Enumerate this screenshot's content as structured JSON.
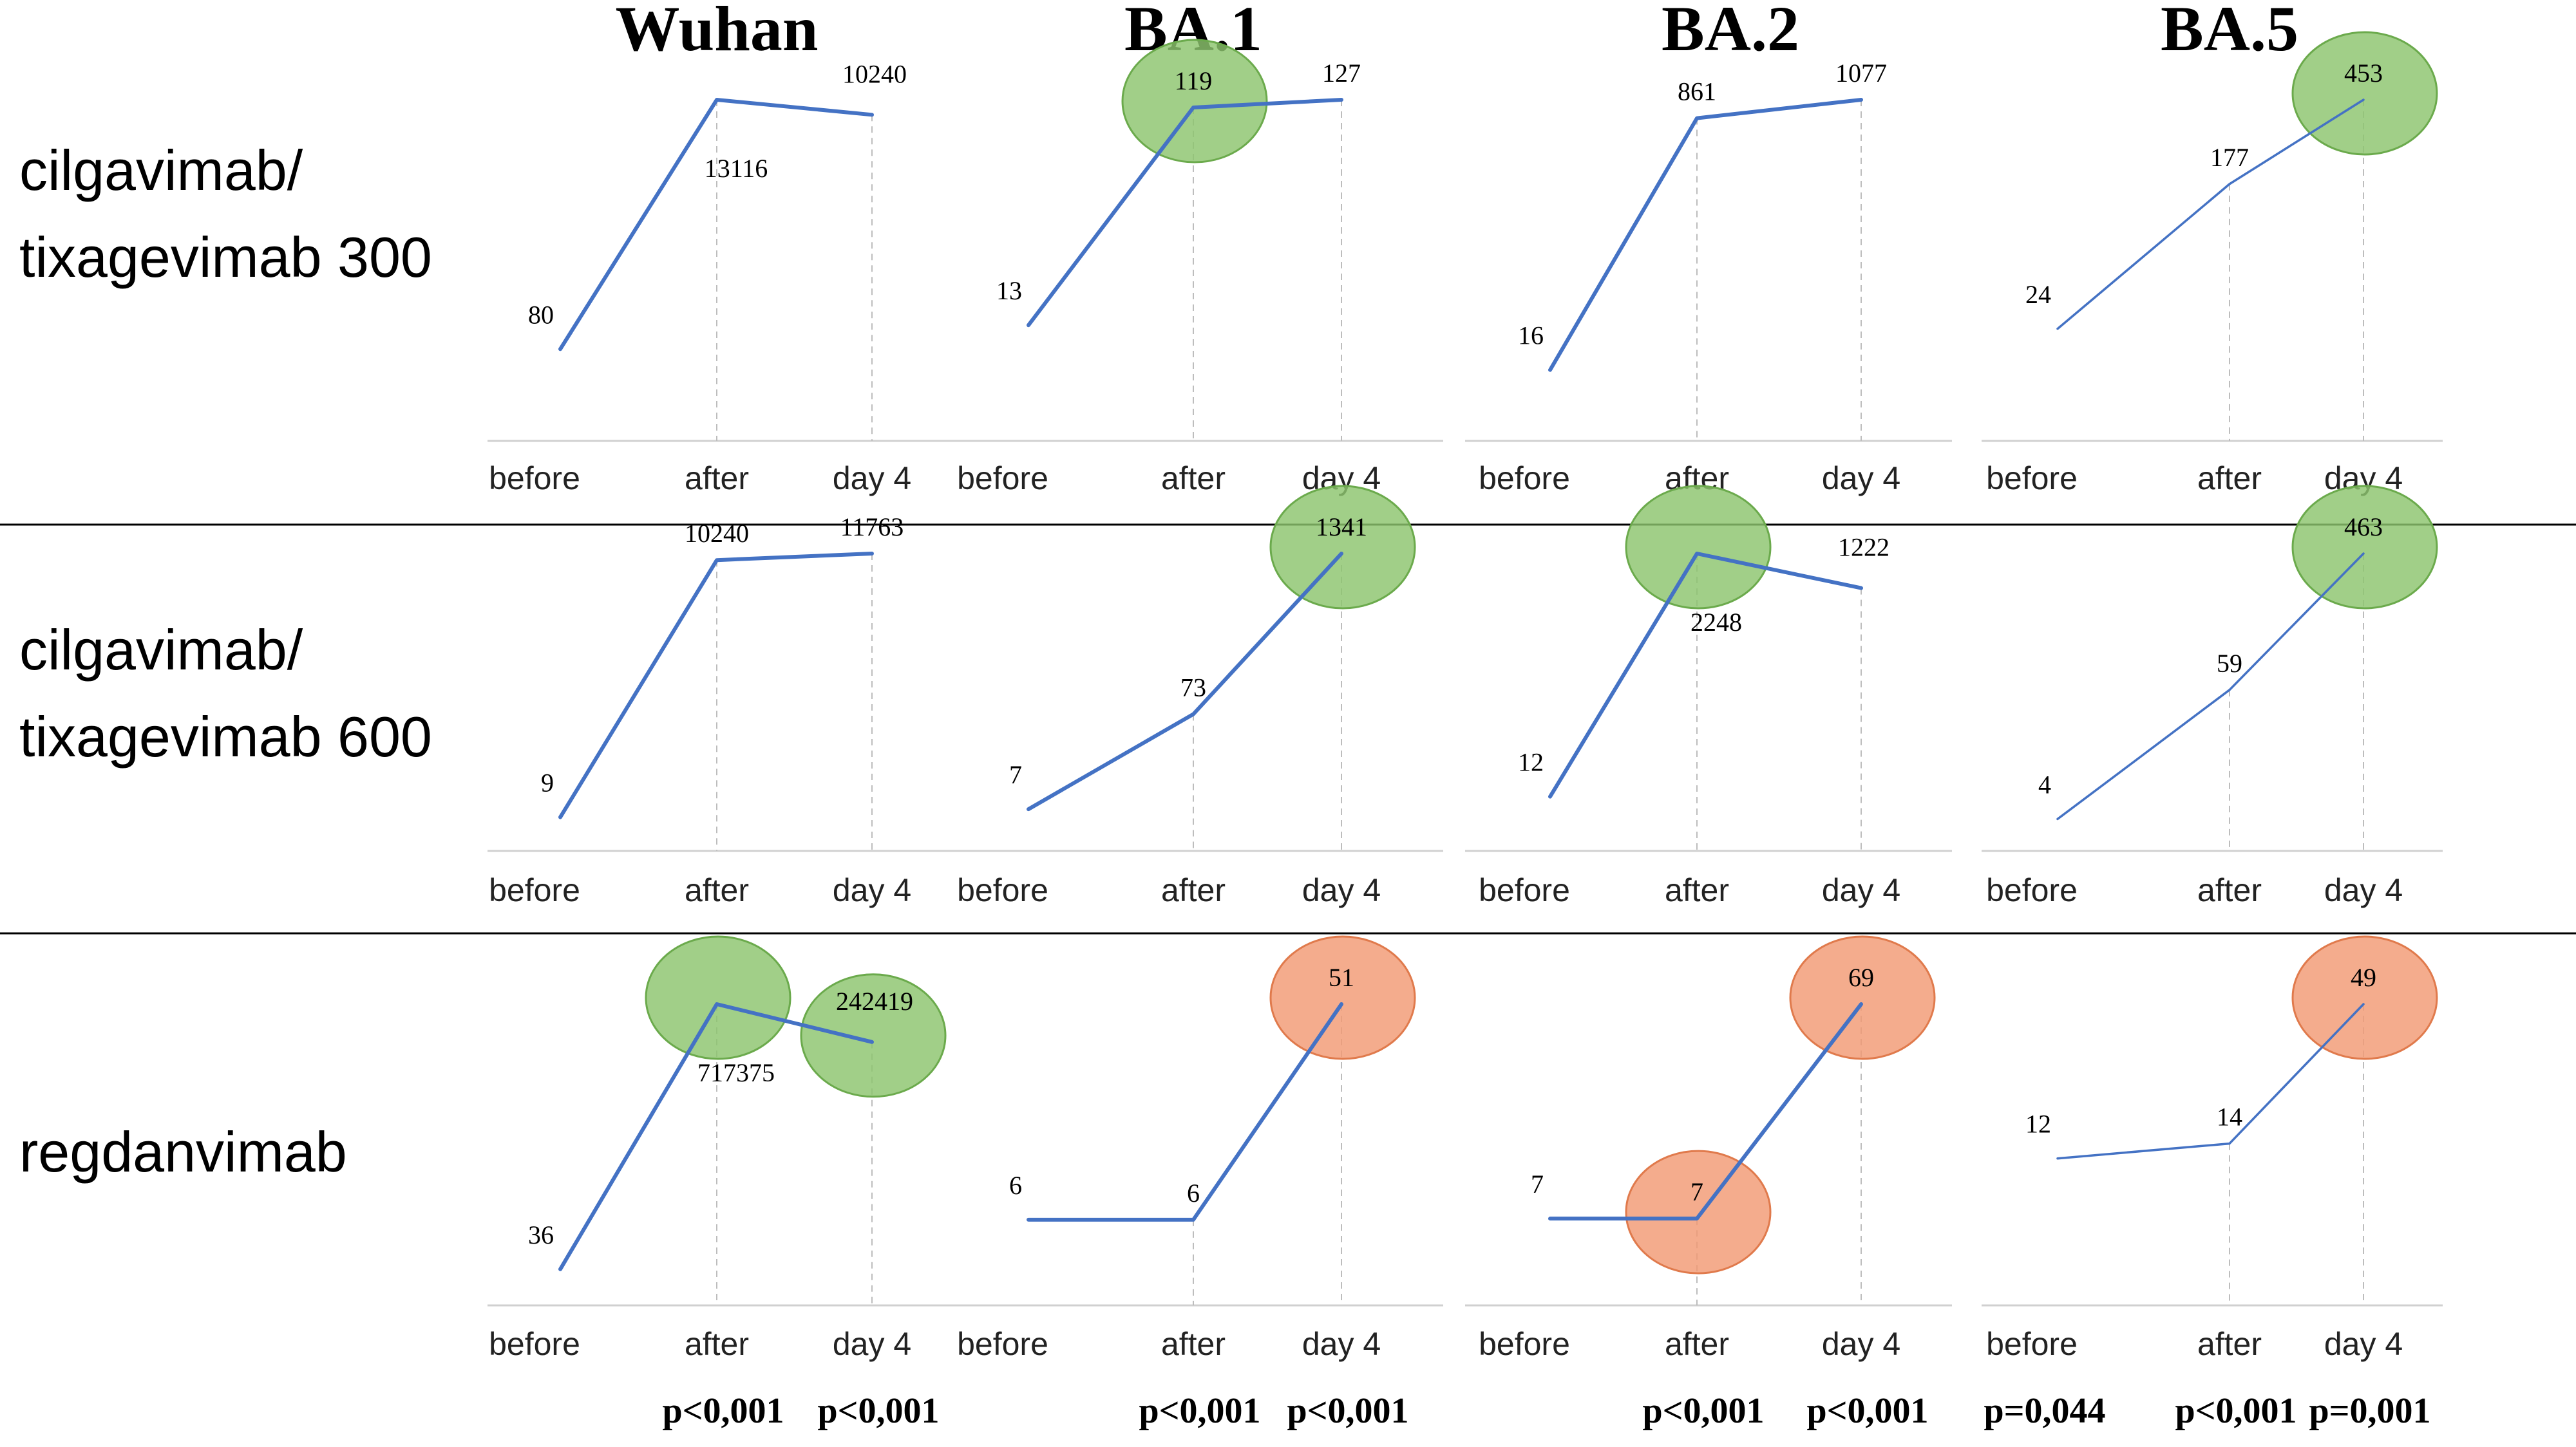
{
  "chart_data": {
    "type": "line",
    "categories": [
      "before",
      "after",
      "day 4"
    ],
    "variants": [
      "Wuhan",
      "BA.1",
      "BA.2",
      "BA.5"
    ],
    "rows": [
      {
        "label_lines": [
          "cilgavimab/",
          "tixagevimab 300"
        ],
        "panels": [
          {
            "variant": "Wuhan",
            "values": [
              80,
              13116,
              10240
            ],
            "labels": [
              "80",
              "13116",
              "10240"
            ],
            "highlights": []
          },
          {
            "variant": "BA.1",
            "values": [
              13,
              119,
              127
            ],
            "labels": [
              "13",
              "119",
              "127"
            ],
            "highlights": [
              {
                "point": 1,
                "color": "green"
              }
            ]
          },
          {
            "variant": "BA.2",
            "values": [
              16,
              861,
              1077
            ],
            "labels": [
              "16",
              "861",
              "1077"
            ],
            "highlights": []
          },
          {
            "variant": "BA.5",
            "values": [
              24,
              177,
              453
            ],
            "labels": [
              "24",
              "177",
              "453"
            ],
            "highlights": [
              {
                "point": 2,
                "color": "green"
              }
            ]
          }
        ]
      },
      {
        "label_lines": [
          "cilgavimab/",
          "tixagevimab 600"
        ],
        "panels": [
          {
            "variant": "Wuhan",
            "values": [
              9,
              10240,
              11763
            ],
            "labels": [
              "9",
              "10240",
              "11763"
            ],
            "highlights": []
          },
          {
            "variant": "BA.1",
            "values": [
              7,
              73,
              1341
            ],
            "labels": [
              "7",
              "73",
              "1341"
            ],
            "highlights": [
              {
                "point": 2,
                "color": "green"
              }
            ]
          },
          {
            "variant": "BA.2",
            "values": [
              12,
              2248,
              1222
            ],
            "labels": [
              "12",
              "2248",
              "1222"
            ],
            "highlights": [
              {
                "point": 1,
                "color": "green"
              }
            ]
          },
          {
            "variant": "BA.5",
            "values": [
              4,
              59,
              463
            ],
            "labels": [
              "4",
              "59",
              "463"
            ],
            "highlights": [
              {
                "point": 2,
                "color": "green"
              }
            ]
          }
        ]
      },
      {
        "label_lines": [
          "regdanvimab"
        ],
        "panels": [
          {
            "variant": "Wuhan",
            "values": [
              36,
              717375,
              242419
            ],
            "labels": [
              "36",
              "717375",
              "242419"
            ],
            "highlights": [
              {
                "point": 1,
                "color": "green"
              },
              {
                "point": 2,
                "color": "green"
              }
            ]
          },
          {
            "variant": "BA.1",
            "values": [
              6,
              6,
              51
            ],
            "labels": [
              "6",
              "6",
              "51"
            ],
            "highlights": [
              {
                "point": 2,
                "color": "orange"
              }
            ]
          },
          {
            "variant": "BA.2",
            "values": [
              7,
              7,
              69
            ],
            "labels": [
              "7",
              "7",
              "69"
            ],
            "highlights": [
              {
                "point": 1,
                "color": "orange"
              },
              {
                "point": 2,
                "color": "orange"
              }
            ]
          },
          {
            "variant": "BA.5",
            "values": [
              12,
              14,
              49
            ],
            "labels": [
              "12",
              "14",
              "49"
            ],
            "highlights": [
              {
                "point": 2,
                "color": "orange"
              }
            ]
          }
        ]
      }
    ],
    "p_values": [
      {
        "variant": "Wuhan",
        "after": "p<0,001",
        "day4": "p<0,001"
      },
      {
        "variant": "BA.1",
        "after": "p<0,001",
        "day4": "p<0,001"
      },
      {
        "variant": "BA.2",
        "after": "p<0,001",
        "day4": "p<0,001"
      },
      {
        "variant": "BA.5",
        "before": "p=0,044",
        "after": "p<0,001",
        "day4": "p=0,001"
      }
    ],
    "grid": false,
    "legend": "none"
  },
  "colors": {
    "line": "#4472C4",
    "highlight_green_fill": "#8CC56E",
    "highlight_green_stroke": "#6BAA4C",
    "highlight_orange_fill": "#F29A74",
    "highlight_orange_stroke": "#E07A4C",
    "axis": "#D0D0D0",
    "guide": "#BDBDBD",
    "separator": "#000000"
  }
}
